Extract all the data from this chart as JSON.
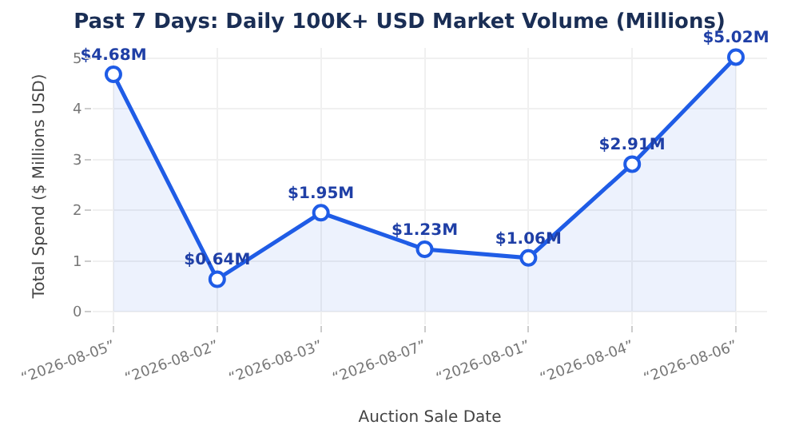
{
  "chart_data": {
    "type": "area",
    "title": "Past 7 Days: Daily 100K+ USD Market Volume (Millions)",
    "xlabel": "Auction Sale Date",
    "ylabel": "Total Spend ($ Millions USD)",
    "categories": [
      "“2026-08-05”",
      "“2026-08-02”",
      "“2026-08-03”",
      "“2026-08-07”",
      "“2026-08-01”",
      "“2026-08-04”",
      "“2026-08-06”"
    ],
    "series": [
      {
        "color": "#1f5ce6",
        "values": [
          4.68,
          0.64,
          1.95,
          1.23,
          1.06,
          2.91,
          5.02
        ],
        "value_labels": [
          "$4.68M",
          "$0.64M",
          "$1.95M",
          "$1.23M",
          "$1.06M",
          "$2.91M",
          "$5.02M"
        ]
      }
    ],
    "ylim": [
      -0.25,
      5.2
    ],
    "yticks": [
      0,
      1,
      2,
      3,
      4,
      5
    ],
    "grid": true,
    "marker": "circle",
    "line_style": "solid",
    "legend": false
  }
}
